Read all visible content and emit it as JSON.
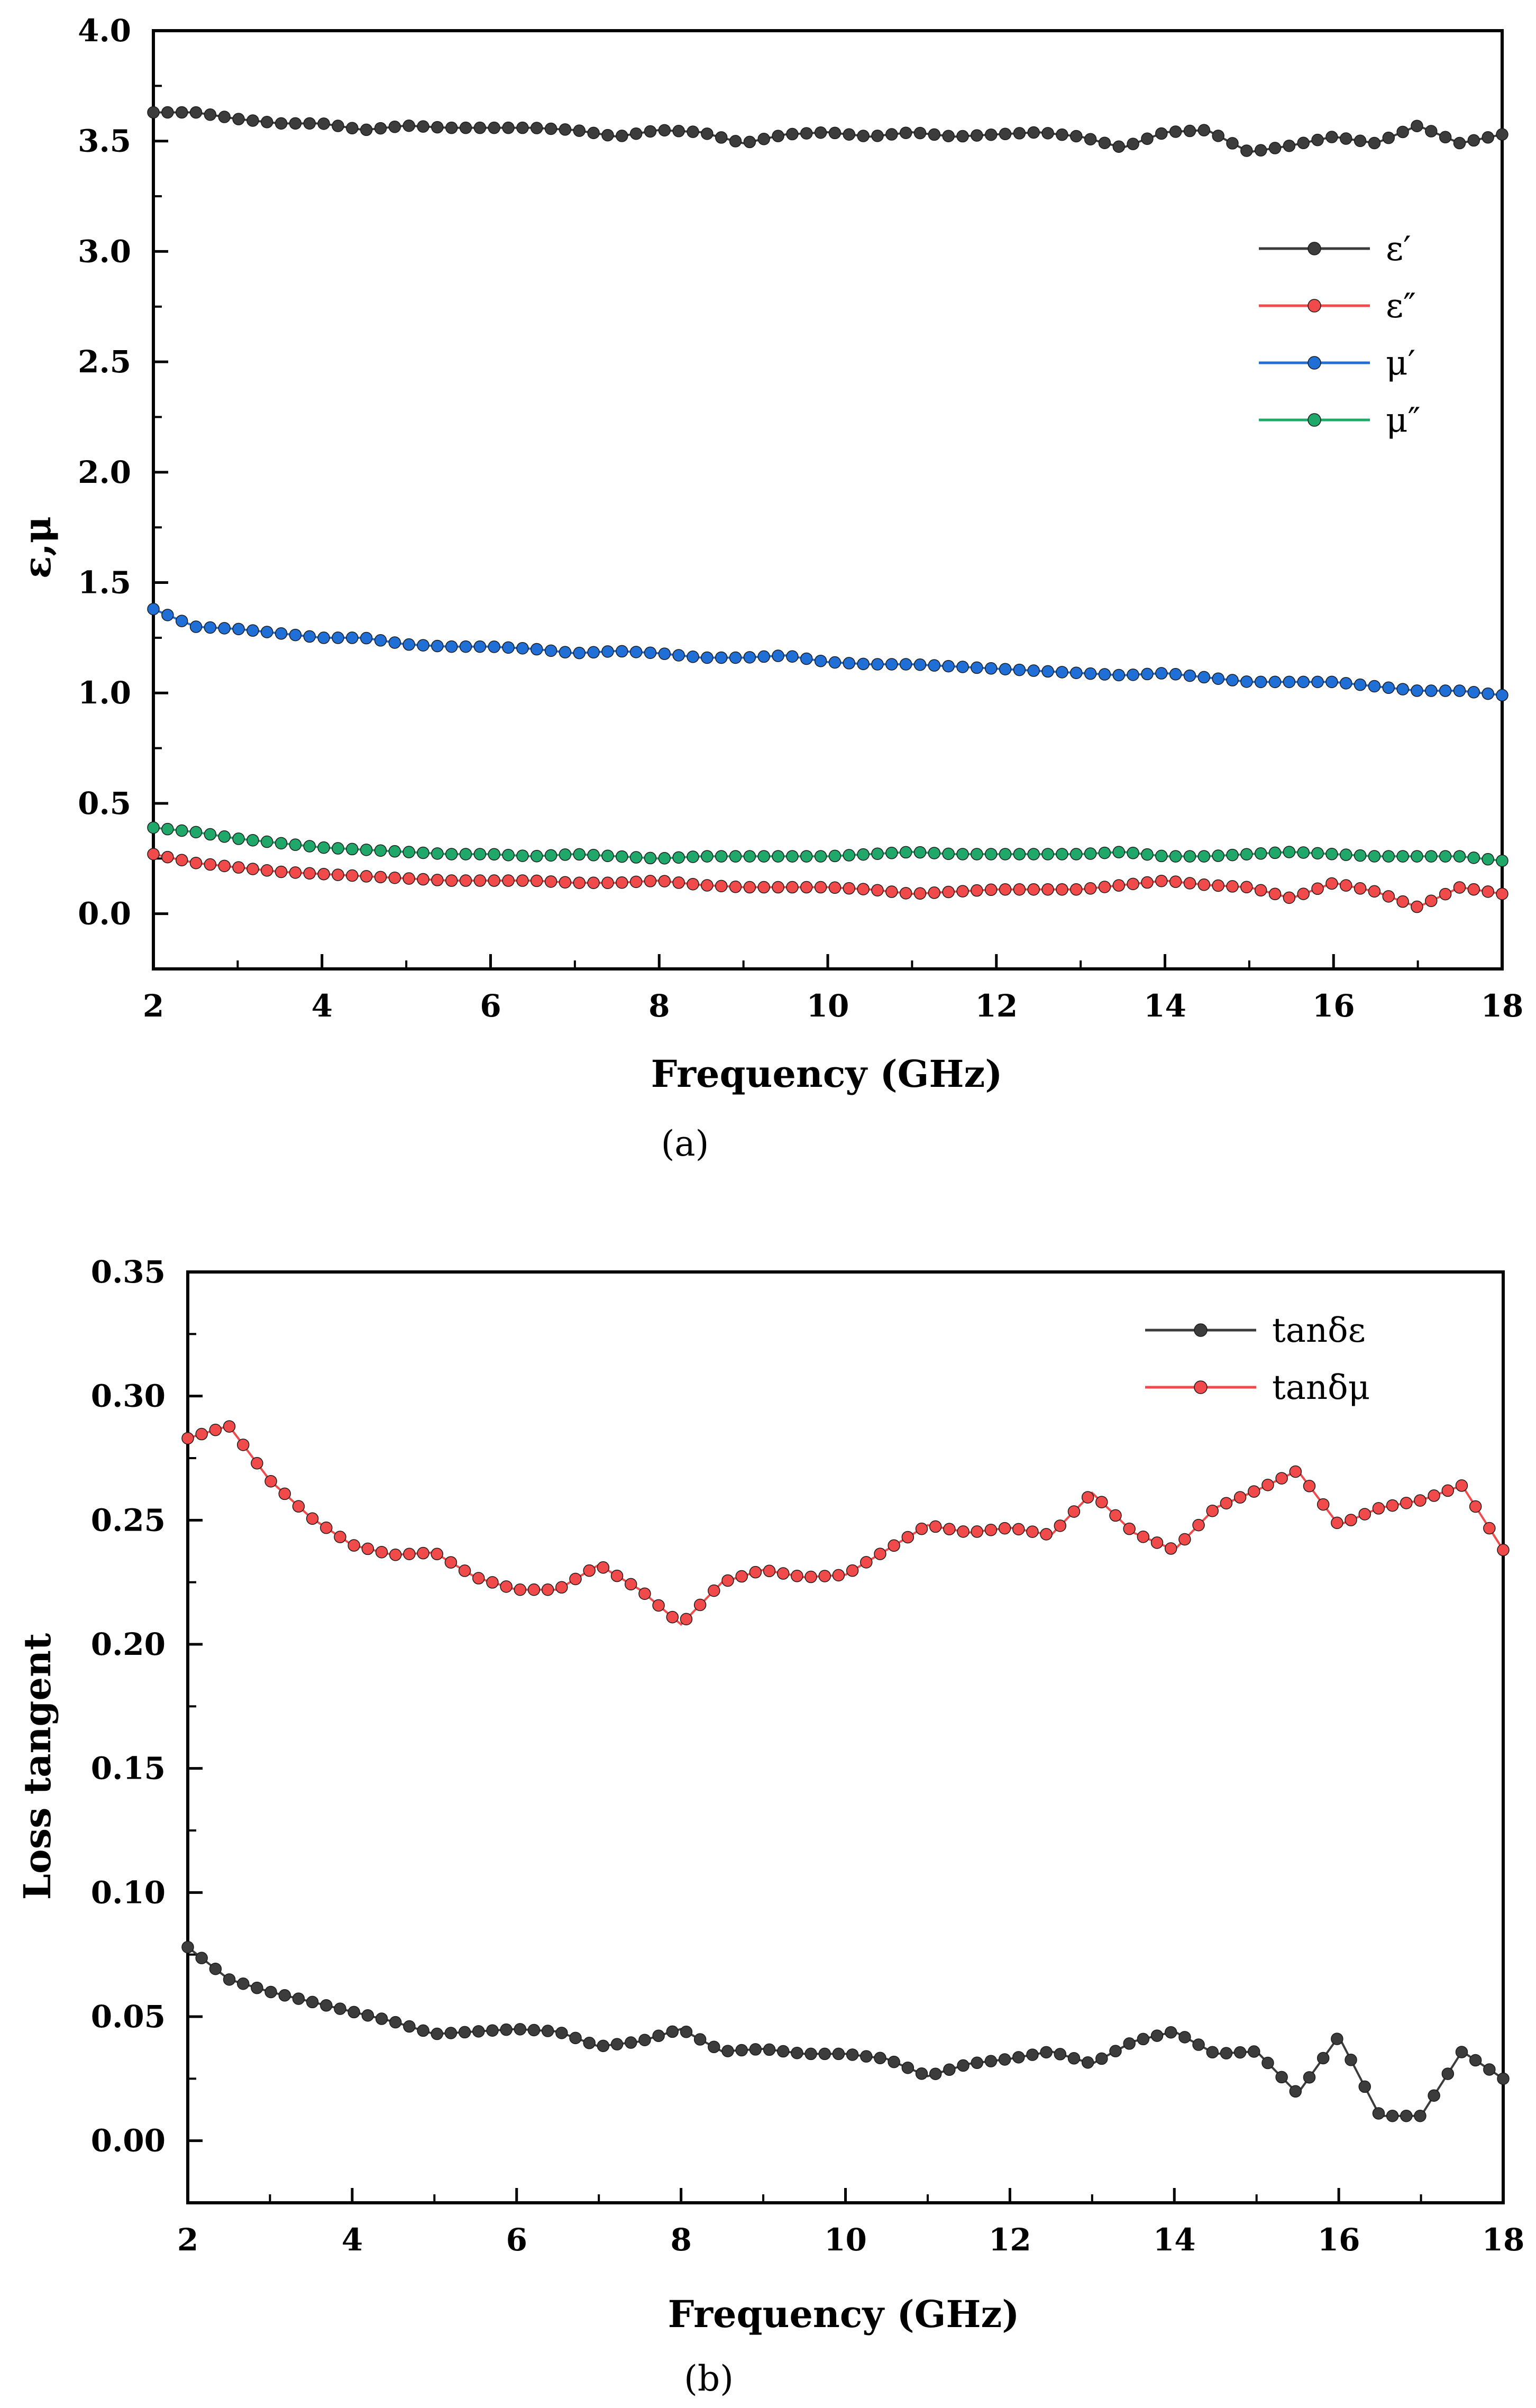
{
  "chart_data": [
    {
      "type": "line",
      "panel_label": "(a)",
      "xlabel": "Frequency (GHz)",
      "ylabel": "ε,μ",
      "xlim": [
        2,
        18
      ],
      "ylim": [
        -0.25,
        4.0
      ],
      "x_ticks": [
        2,
        4,
        6,
        8,
        10,
        12,
        14,
        16,
        18
      ],
      "x_tick_labels": [
        "2",
        "4",
        "6",
        "8",
        "10",
        "12",
        "14",
        "16",
        "18"
      ],
      "y_ticks": [
        0,
        0.5,
        1,
        1.5,
        2,
        2.5,
        3,
        3.5,
        4
      ],
      "y_tick_labels": [
        "0.0",
        "0.5",
        "1.0",
        "1.5",
        "2.0",
        "2.5",
        "3.0",
        "3.5",
        "4.0"
      ],
      "legend_position": "upper-right",
      "series": [
        {
          "name": "ε′",
          "color": "#3c3c3c",
          "x": [
            2,
            2.5,
            3,
            3.5,
            4,
            4.5,
            5,
            5.5,
            6,
            6.5,
            7,
            7.5,
            8,
            8.5,
            9,
            9.5,
            10,
            10.5,
            11,
            11.5,
            12,
            12.5,
            13,
            13.5,
            14,
            14.5,
            15,
            15.5,
            16,
            16.5,
            17,
            17.5,
            18
          ],
          "y": [
            3.63,
            3.63,
            3.6,
            3.58,
            3.58,
            3.55,
            3.57,
            3.56,
            3.56,
            3.56,
            3.55,
            3.52,
            3.55,
            3.54,
            3.49,
            3.53,
            3.54,
            3.52,
            3.54,
            3.52,
            3.53,
            3.54,
            3.52,
            3.47,
            3.54,
            3.55,
            3.45,
            3.48,
            3.52,
            3.49,
            3.57,
            3.49,
            3.53
          ]
        },
        {
          "name": "ε″",
          "color": "#f04a4a",
          "x": [
            2,
            2.5,
            3,
            3.5,
            4,
            4.5,
            5,
            5.5,
            6,
            6.5,
            7,
            7.5,
            8,
            8.5,
            9,
            9.5,
            10,
            10.5,
            11,
            11.5,
            12,
            12.5,
            13,
            13.5,
            14,
            14.5,
            15,
            15.5,
            16,
            16.5,
            17,
            17.5,
            18
          ],
          "y": [
            0.27,
            0.23,
            0.21,
            0.19,
            0.18,
            0.17,
            0.16,
            0.15,
            0.15,
            0.15,
            0.14,
            0.14,
            0.15,
            0.13,
            0.12,
            0.12,
            0.12,
            0.11,
            0.09,
            0.1,
            0.11,
            0.11,
            0.11,
            0.13,
            0.15,
            0.13,
            0.12,
            0.07,
            0.14,
            0.1,
            0.03,
            0.12,
            0.09
          ]
        },
        {
          "name": "μ′",
          "color": "#1f6fd6",
          "x": [
            2,
            2.5,
            3,
            3.5,
            4,
            4.5,
            5,
            5.5,
            6,
            6.5,
            7,
            7.5,
            8,
            8.5,
            9,
            9.5,
            10,
            10.5,
            11,
            11.5,
            12,
            12.5,
            13,
            13.5,
            14,
            14.5,
            15,
            15.5,
            16,
            16.5,
            17,
            17.5,
            18
          ],
          "y": [
            1.38,
            1.3,
            1.29,
            1.27,
            1.25,
            1.25,
            1.22,
            1.21,
            1.21,
            1.2,
            1.18,
            1.19,
            1.18,
            1.16,
            1.16,
            1.17,
            1.14,
            1.13,
            1.13,
            1.12,
            1.11,
            1.1,
            1.09,
            1.08,
            1.09,
            1.07,
            1.05,
            1.05,
            1.05,
            1.03,
            1.01,
            1.01,
            0.99
          ]
        },
        {
          "name": "μ″",
          "color": "#1fa86a",
          "x": [
            2,
            2.5,
            3,
            3.5,
            4,
            4.5,
            5,
            5.5,
            6,
            6.5,
            7,
            7.5,
            8,
            8.5,
            9,
            9.5,
            10,
            10.5,
            11,
            11.5,
            12,
            12.5,
            13,
            13.5,
            14,
            14.5,
            15,
            15.5,
            16,
            16.5,
            17,
            17.5,
            18
          ],
          "y": [
            0.39,
            0.37,
            0.34,
            0.32,
            0.3,
            0.29,
            0.28,
            0.27,
            0.27,
            0.26,
            0.27,
            0.26,
            0.25,
            0.26,
            0.26,
            0.26,
            0.26,
            0.27,
            0.28,
            0.27,
            0.27,
            0.27,
            0.27,
            0.28,
            0.26,
            0.26,
            0.27,
            0.28,
            0.27,
            0.26,
            0.26,
            0.26,
            0.24
          ]
        }
      ]
    },
    {
      "type": "line",
      "panel_label": "(b)",
      "xlabel": "Frequency (GHz)",
      "ylabel": "Loss tangent",
      "xlim": [
        2,
        18
      ],
      "ylim": [
        -0.025,
        0.35
      ],
      "x_ticks": [
        2,
        4,
        6,
        8,
        10,
        12,
        14,
        16,
        18
      ],
      "x_tick_labels": [
        "2",
        "4",
        "6",
        "8",
        "10",
        "12",
        "14",
        "16",
        "18"
      ],
      "y_ticks": [
        0,
        0.05,
        0.1,
        0.15,
        0.2,
        0.25,
        0.3,
        0.35
      ],
      "y_tick_labels": [
        "0.00",
        "0.05",
        "0.10",
        "0.15",
        "0.20",
        "0.25",
        "0.30",
        "0.35"
      ],
      "legend_position": "upper-right",
      "series": [
        {
          "name": "tanδε",
          "color": "#3c3c3c",
          "x": [
            2,
            2.5,
            3,
            3.5,
            4,
            4.5,
            5,
            5.5,
            6,
            6.5,
            7,
            7.5,
            8,
            8.5,
            9,
            9.5,
            10,
            10.5,
            11,
            11.5,
            12,
            12.5,
            13,
            13.5,
            14,
            14.5,
            15,
            15.5,
            16,
            16.5,
            17,
            17.5,
            18
          ],
          "y": [
            0.078,
            0.065,
            0.06,
            0.056,
            0.052,
            0.048,
            0.043,
            0.044,
            0.045,
            0.044,
            0.038,
            0.04,
            0.045,
            0.036,
            0.037,
            0.035,
            0.035,
            0.033,
            0.026,
            0.031,
            0.033,
            0.036,
            0.031,
            0.04,
            0.044,
            0.035,
            0.036,
            0.019,
            0.042,
            0.01,
            0.01,
            0.036,
            0.025
          ]
        },
        {
          "name": "tanδμ",
          "color": "#f04a4a",
          "x": [
            2,
            2.5,
            3,
            3.5,
            4,
            4.5,
            5,
            5.5,
            6,
            6.5,
            7,
            7.5,
            8,
            8.5,
            9,
            9.5,
            10,
            10.5,
            11,
            11.5,
            12,
            12.5,
            13,
            13.5,
            14,
            14.5,
            15,
            15.5,
            16,
            16.5,
            17,
            17.5,
            18
          ],
          "y": [
            0.283,
            0.288,
            0.266,
            0.251,
            0.24,
            0.236,
            0.237,
            0.227,
            0.222,
            0.222,
            0.232,
            0.222,
            0.208,
            0.225,
            0.23,
            0.227,
            0.228,
            0.238,
            0.248,
            0.245,
            0.247,
            0.244,
            0.261,
            0.245,
            0.238,
            0.255,
            0.262,
            0.27,
            0.248,
            0.255,
            0.258,
            0.264,
            0.238
          ]
        }
      ]
    }
  ]
}
